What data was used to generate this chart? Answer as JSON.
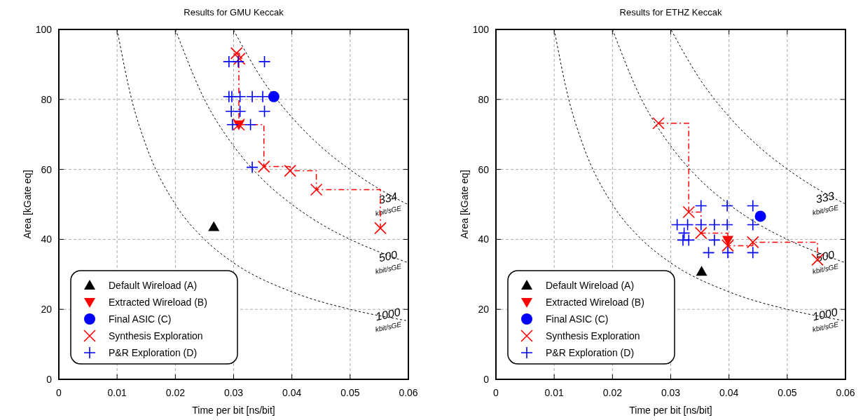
{
  "chart_data": [
    {
      "type": "scatter",
      "title": "Results for GMU Keccak",
      "xlabel": "Time per bit  [ns/bit]",
      "ylabel": "Area [kGate eq]",
      "xlim": [
        0,
        0.06
      ],
      "ylim": [
        0,
        100
      ],
      "xticks": [
        0,
        0.01,
        0.02,
        0.03,
        0.04,
        0.05,
        0.06
      ],
      "yticks": [
        0,
        20,
        40,
        60,
        80,
        100
      ],
      "grid": true,
      "legend": "bottom left",
      "series": [
        {
          "type": "line",
          "color": "#000000",
          "line_style": "dashed",
          "marker": "none",
          "x": [
            0.01,
            0.0125,
            0.015,
            0.02,
            0.025,
            0.03,
            0.04,
            0.05,
            0.06
          ],
          "values": [
            100,
            80,
            66.7,
            50,
            40,
            33.3,
            25,
            20,
            16.7
          ]
        },
        {
          "type": "line",
          "color": "#000000",
          "line_style": "dashed",
          "marker": "none",
          "x": [
            0.02,
            0.025,
            0.03,
            0.035,
            0.04,
            0.045,
            0.05,
            0.055,
            0.06
          ],
          "values": [
            100,
            80,
            66.7,
            57.1,
            50,
            44.4,
            40,
            36.4,
            33.3
          ]
        },
        {
          "type": "line",
          "color": "#000000",
          "line_style": "dashed",
          "marker": "none",
          "x": [
            0.03,
            0.035,
            0.04,
            0.045,
            0.05,
            0.055,
            0.06
          ],
          "values": [
            99.8,
            85.5,
            74.9,
            66.5,
            59.9,
            54.4,
            49.9
          ]
        },
        {
          "name": "Default Wireload (A)",
          "color": "#000000",
          "marker": "triangle",
          "x": [
            0.0266
          ],
          "values": [
            43.6
          ]
        },
        {
          "name": "Extracted Wireload (B)",
          "color": "#ff0000",
          "x": [
            0.0309
          ],
          "values": [
            72.8
          ]
        },
        {
          "name": "Final ASIC (C)",
          "color": "#0000ff",
          "marker": "circle",
          "x": [
            0.0369
          ],
          "values": [
            80.8
          ]
        },
        {
          "name": "Synthesis Exploration",
          "type": "step",
          "color": "#ff0000",
          "marker": "cross",
          "line_style": "dashed",
          "x": [
            0.0305,
            0.031,
            0.0309,
            0.0352,
            0.0397,
            0.0442,
            0.0552
          ],
          "values": [
            93.2,
            91.6,
            72.8,
            60.8,
            59.6,
            54.2,
            43.2
          ]
        },
        {
          "name": "P&R Exploration (D)",
          "color": "#0000ff",
          "marker": "cross",
          "x": [
            0.0292,
            0.0308,
            0.0353,
            0.0292,
            0.0297,
            0.0311,
            0.0332,
            0.035,
            0.0296,
            0.0311,
            0.0353,
            0.0298,
            0.0329,
            0.0332
          ],
          "values": [
            90.8,
            90.8,
            90.8,
            80.8,
            80.8,
            80.8,
            80.8,
            80.8,
            76.6,
            76.6,
            76.6,
            72.8,
            72.8,
            60.6
          ]
        }
      ],
      "annotations": [
        "334",
        "kbit/sGE",
        "500",
        "kbit/sGE",
        "1000",
        "kbit/sGE"
      ]
    },
    {
      "type": "scatter",
      "title": "Results for ETHZ Keccak",
      "xlabel": "Time per bit  [ns/bit]",
      "ylabel": "Area [kGate eq]",
      "xlim": [
        0,
        0.06
      ],
      "ylim": [
        0,
        100
      ],
      "xticks": [
        0,
        0.01,
        0.02,
        0.03,
        0.04,
        0.05,
        0.06
      ],
      "yticks": [
        0,
        20,
        40,
        60,
        80,
        100
      ],
      "grid": true,
      "legend": "bottom left",
      "series": [
        {
          "type": "line",
          "color": "#000000",
          "line_style": "dashed",
          "marker": "none",
          "x": [
            0.01,
            0.0125,
            0.015,
            0.02,
            0.025,
            0.03,
            0.04,
            0.05,
            0.06
          ],
          "values": [
            100,
            80,
            66.7,
            50,
            40,
            33.3,
            25,
            20,
            16.7
          ]
        },
        {
          "type": "line",
          "color": "#000000",
          "line_style": "dashed",
          "marker": "none",
          "x": [
            0.02,
            0.025,
            0.03,
            0.035,
            0.04,
            0.045,
            0.05,
            0.055,
            0.06
          ],
          "values": [
            100,
            80,
            66.7,
            57.1,
            50,
            44.4,
            40,
            36.4,
            33.3
          ]
        },
        {
          "type": "line",
          "color": "#000000",
          "line_style": "dashed",
          "marker": "none",
          "x": [
            0.0301,
            0.035,
            0.04,
            0.045,
            0.05,
            0.055,
            0.06
          ],
          "values": [
            99.8,
            85.8,
            75.1,
            66.7,
            60.1,
            54.6,
            50.1
          ]
        },
        {
          "name": "Default Wireload (A)",
          "color": "#000000",
          "marker": "triangle",
          "x": [
            0.0353
          ],
          "values": [
            30.8
          ]
        },
        {
          "name": "Extracted Wireload (B)",
          "color": "#ff0000",
          "marker": "triangle",
          "x": [
            0.0398
          ],
          "values": [
            39.8
          ]
        },
        {
          "name": "Final ASIC (C)",
          "color": "#0000ff",
          "marker": "circle",
          "x": [
            0.0454
          ],
          "values": [
            46.6
          ]
        },
        {
          "name": "Synthesis Exploration",
          "type": "step",
          "color": "#ff0000",
          "marker": "cross",
          "line_style": "dashed",
          "x": [
            0.0279,
            0.0331,
            0.0352,
            0.0398,
            0.0441,
            0.0552
          ],
          "values": [
            73.2,
            47.8,
            41.8,
            38.2,
            39.2,
            34.2
          ]
        },
        {
          "name": "P&R Exploration (D)",
          "color": "#0000ff",
          "marker": "cross",
          "x": [
            0.0352,
            0.0397,
            0.0441,
            0.0311,
            0.0329,
            0.0352,
            0.0375,
            0.0397,
            0.0441,
            0.0323,
            0.0321,
            0.0331,
            0.0375,
            0.0365,
            0.0398,
            0.0441
          ],
          "values": [
            49.6,
            49.6,
            49.6,
            44.2,
            44.2,
            44.2,
            44.2,
            44.2,
            44.2,
            41.8,
            39.8,
            39.8,
            39.8,
            36.2,
            36.2,
            36.2
          ]
        }
      ],
      "annotations": [
        "333",
        "kbit/sGE",
        "500",
        "kbit/sGE",
        "1000",
        "kbit/sGE"
      ]
    }
  ]
}
